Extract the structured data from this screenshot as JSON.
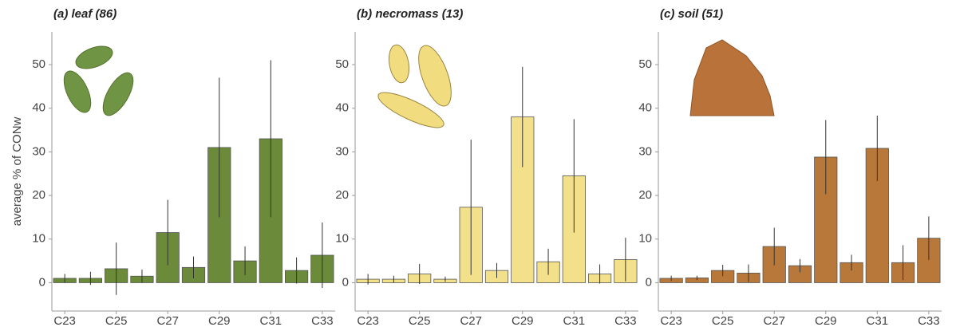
{
  "chart_data": [
    {
      "type": "bar",
      "title": "(a) leaf (86)",
      "ylabel": "average % of CONw",
      "categories": [
        "C23",
        null,
        "C25",
        null,
        "C27",
        null,
        "C29",
        null,
        "C31",
        null,
        "C33"
      ],
      "values": [
        1,
        1,
        3.2,
        1.5,
        11.5,
        3.5,
        31,
        5,
        33,
        2.8,
        6.3
      ],
      "errors": [
        1,
        1.5,
        6,
        1.5,
        7.5,
        2.5,
        16,
        3.3,
        18,
        3,
        7.5
      ],
      "color": "#6b8a3a",
      "ylim": [
        -6.5,
        57.5
      ],
      "yticks": [
        0,
        10,
        20,
        30,
        40,
        50
      ],
      "grid": false
    },
    {
      "type": "bar",
      "title": "(b) necromass (13)",
      "categories": [
        "C23",
        null,
        "C25",
        null,
        "C27",
        null,
        "C29",
        null,
        "C31",
        null,
        "C33"
      ],
      "values": [
        0.8,
        0.8,
        2,
        0.8,
        17.3,
        2.8,
        38,
        4.8,
        24.5,
        2,
        5.3
      ],
      "errors": [
        1.2,
        0.8,
        2.3,
        0.6,
        15.5,
        1.7,
        11.5,
        3,
        13,
        2.2,
        5
      ],
      "color": "#f2e08a",
      "ylim": [
        -6.5,
        57.5
      ],
      "yticks": [
        0,
        10,
        20,
        30,
        40,
        50
      ],
      "grid": false
    },
    {
      "type": "bar",
      "title": "(c) soil (51)",
      "categories": [
        "C23",
        null,
        "C25",
        null,
        "C27",
        null,
        "C29",
        null,
        "C31",
        null,
        "C33"
      ],
      "values": [
        1,
        1.1,
        2.8,
        2.2,
        8.3,
        3.9,
        28.8,
        4.6,
        30.8,
        4.6,
        10.2
      ],
      "errors": [
        0.6,
        0.5,
        1.3,
        2,
        4.3,
        1.5,
        8.5,
        1.8,
        7.5,
        4,
        5
      ],
      "color": "#b8783a",
      "ylim": [
        -6.5,
        57.5
      ],
      "yticks": [
        0,
        10,
        20,
        30,
        40,
        50
      ],
      "grid": false
    }
  ]
}
